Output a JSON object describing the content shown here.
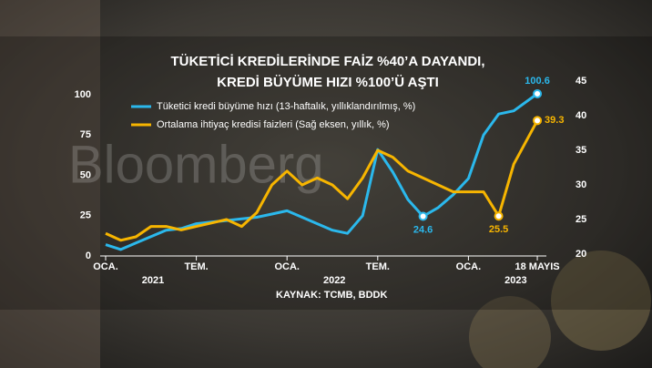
{
  "chart_data": {
    "type": "line",
    "title": [
      "TÜKETİCİ KREDİLERİNDE FAİZ %40’A DAYANDI,",
      "KREDİ BÜYÜME HIZI %100’Ü AŞTI"
    ],
    "watermark": "Bloomberg",
    "source": "KAYNAK: TCMB, BDDK",
    "x": [
      "2021-01",
      "2021-02",
      "2021-03",
      "2021-04",
      "2021-05",
      "2021-06",
      "2021-07",
      "2021-08",
      "2021-09",
      "2021-10",
      "2021-11",
      "2021-12",
      "2022-01",
      "2022-02",
      "2022-03",
      "2022-04",
      "2022-05",
      "2022-06",
      "2022-07",
      "2022-08",
      "2022-09",
      "2022-10",
      "2022-11",
      "2022-12",
      "2023-01",
      "2023-02",
      "2023-03",
      "2023-04",
      "2023-05-18"
    ],
    "xticks": [
      {
        "value": "2021-01",
        "label": "OCA."
      },
      {
        "value": "2021-07",
        "label": "TEM."
      },
      {
        "value": "2022-01",
        "label": "OCA."
      },
      {
        "value": "2022-07",
        "label": "TEM."
      },
      {
        "value": "2023-01",
        "label": "OCA."
      },
      {
        "value": "2023-05-18",
        "label": "18 MAYIS"
      }
    ],
    "years": [
      "2021",
      "2022",
      "2023"
    ],
    "ylim": [
      0,
      100
    ],
    "yticks": [
      0,
      25,
      50,
      75,
      100
    ],
    "y2lim": [
      20,
      45
    ],
    "y2ticks": [
      20,
      25,
      30,
      35,
      40,
      45
    ],
    "series": [
      {
        "name": "Tüketici kredi büyüme hızı (13-haftalık, yıllıklandırılmış, %)",
        "color": "#2bb8ec",
        "values": [
          7,
          4,
          8,
          12,
          16,
          17,
          20,
          21,
          22,
          23,
          24,
          26,
          28,
          24,
          20,
          16,
          14,
          25,
          66,
          52,
          35,
          24.6,
          30,
          38,
          48,
          75,
          88,
          90,
          100.6
        ],
        "value_labels": [
          null,
          null,
          null,
          null,
          null,
          null,
          null,
          null,
          null,
          null,
          null,
          null,
          null,
          null,
          null,
          null,
          null,
          null,
          null,
          null,
          null,
          "24.6",
          null,
          null,
          null,
          null,
          null,
          null,
          "100.6"
        ]
      },
      {
        "name": "Ortalama ihtiyaç kredisi faizleri (Sağ eksen, yıllık, %)",
        "color": "#f7b500",
        "axis": "y2",
        "values": [
          23,
          22,
          22.5,
          24,
          24,
          23.5,
          24,
          24.5,
          25,
          24,
          26,
          30,
          32,
          30,
          31,
          30,
          28,
          31,
          35,
          34,
          32,
          31,
          30,
          29,
          29,
          29,
          25.5,
          33,
          39.3
        ],
        "value_labels": [
          null,
          null,
          null,
          null,
          null,
          null,
          null,
          null,
          null,
          null,
          null,
          null,
          null,
          null,
          null,
          null,
          null,
          null,
          null,
          null,
          null,
          null,
          null,
          null,
          null,
          null,
          "25.5",
          null,
          "39.3"
        ]
      }
    ]
  }
}
